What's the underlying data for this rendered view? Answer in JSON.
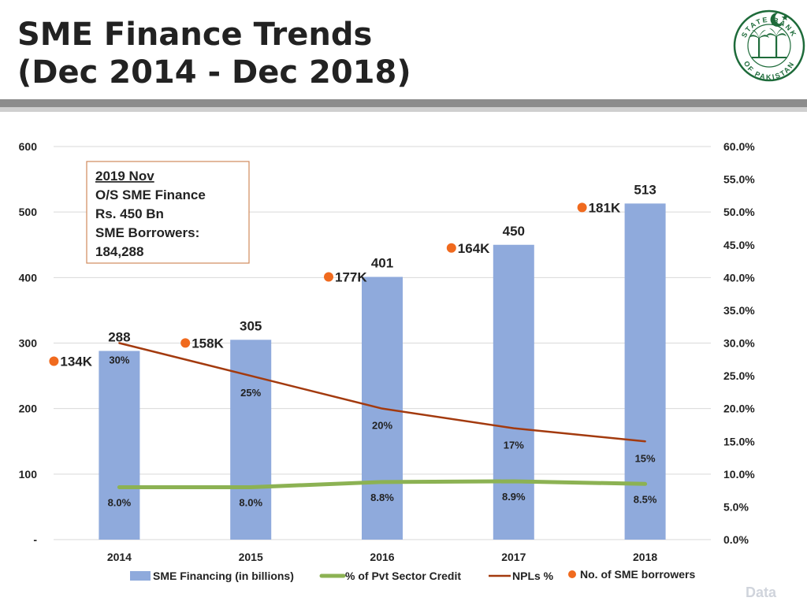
{
  "slide": {
    "title_line1": "SME Finance Trends",
    "title_line2": "(Dec 2014 - Dec 2018)",
    "footer_tag": "Data"
  },
  "logo": {
    "top_text": "STATE BANK",
    "bottom_text": "OF PAKISTAN"
  },
  "colors": {
    "bars": "#8faadc",
    "pvt_line": "#8cb253",
    "npl_line": "#a33a0e",
    "borrowers": "#f06a1e",
    "grid": "#d9d9d9",
    "axis": "#d9d9d9",
    "annotation_border": "#d08a5c"
  },
  "chart_data": {
    "type": "bar",
    "categories": [
      "2014",
      "2015",
      "2016",
      "2017",
      "2018"
    ],
    "left_axis": {
      "range": [
        0,
        600
      ],
      "ticks": [
        {
          "value": 0,
          "label": "-"
        },
        {
          "value": 100,
          "label": "100"
        },
        {
          "value": 200,
          "label": "200"
        },
        {
          "value": 300,
          "label": "300"
        },
        {
          "value": 400,
          "label": "400"
        },
        {
          "value": 500,
          "label": "500"
        },
        {
          "value": 600,
          "label": "600"
        }
      ]
    },
    "right_axis": {
      "range": [
        0,
        60
      ],
      "ticks": [
        "0.0%",
        "5.0%",
        "10.0%",
        "15.0%",
        "20.0%",
        "25.0%",
        "30.0%",
        "35.0%",
        "40.0%",
        "45.0%",
        "50.0%",
        "55.0%",
        "60.0%"
      ]
    },
    "grid": true,
    "series": [
      {
        "name": "SME Financing (in billions)",
        "type": "bar",
        "axis": "left",
        "values": [
          288,
          305,
          401,
          450,
          513
        ],
        "labels": [
          "288",
          "305",
          "401",
          "450",
          "513"
        ]
      },
      {
        "name": "% of Pvt Sector Credit",
        "type": "line",
        "axis": "right",
        "values": [
          8.0,
          8.0,
          8.8,
          8.9,
          8.5
        ],
        "labels": [
          "8.0%",
          "8.0%",
          "8.8%",
          "8.9%",
          "8.5%"
        ]
      },
      {
        "name": "NPLs %",
        "type": "line",
        "axis": "right",
        "values": [
          30,
          25,
          20,
          17,
          15
        ],
        "labels": [
          "30%",
          "25%",
          "20%",
          "17%",
          "15%"
        ]
      },
      {
        "name": "No. of SME borrowers",
        "type": "scatter",
        "axis": "left",
        "values": [
          134,
          158,
          177,
          164,
          181
        ],
        "labels": [
          "134K",
          "158K",
          "177K",
          "164K",
          "181K"
        ]
      }
    ],
    "legend_position": "bottom",
    "annotation": {
      "line1": "2019 Nov",
      "line2": "O/S SME Finance",
      "line3": "Rs. 450 Bn",
      "line4": "SME Borrowers:",
      "line5": "184,288"
    }
  }
}
